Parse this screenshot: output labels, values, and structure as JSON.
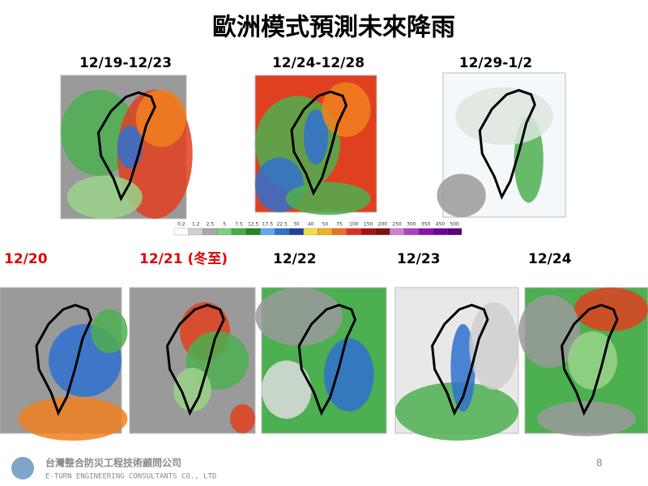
{
  "title": "歐洲模式預測未來降雨",
  "periods": [
    {
      "label": "12/19-12/23"
    },
    {
      "label": "12/24-12/28"
    },
    {
      "label": "12/29-1/2"
    }
  ],
  "colorbar": {
    "ticks": [
      0.2,
      1.2,
      2.5,
      5,
      7.5,
      12.5,
      17.5,
      22.5,
      30,
      40,
      50,
      75,
      100,
      150,
      200,
      250,
      300,
      350,
      450,
      500
    ]
  },
  "daily": [
    {
      "label": "12/20",
      "color": "#e00000"
    },
    {
      "label": "12/21 (冬至)",
      "color": "#e00000"
    },
    {
      "label": "12/22",
      "color": "#000000"
    },
    {
      "label": "12/23",
      "color": "#000000"
    },
    {
      "label": "12/24",
      "color": "#000000"
    }
  ],
  "footer": {
    "company_zh": "台灣整合防災工程技術顧問公司",
    "company_en": "E-TURN ENGINEERING CONSULTANTS CO., LTD",
    "page": "8"
  }
}
